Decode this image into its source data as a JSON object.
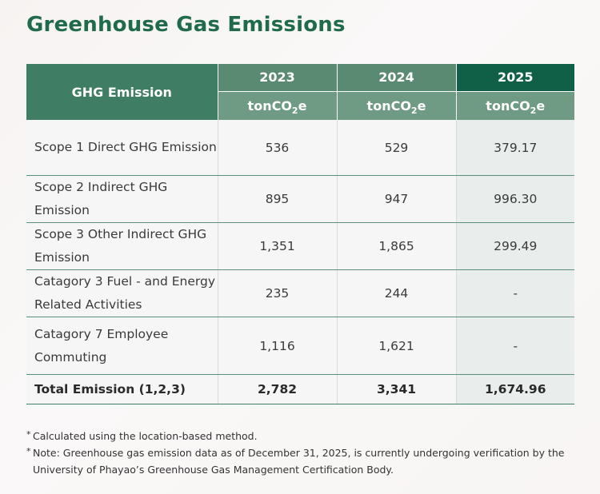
{
  "title": "Greenhouse Gas Emissions",
  "table": {
    "header_label": "GHG Emission",
    "years": [
      "2023",
      "2024",
      "2025"
    ],
    "unit_prefix": "tonCO",
    "unit_sub": "2",
    "unit_suffix": "e",
    "rows": [
      {
        "label": "Scope 1 Direct GHG Emission",
        "values": [
          "536",
          "529",
          "379.17"
        ]
      },
      {
        "label": "Scope 2 Indirect GHG Emission",
        "values": [
          "895",
          "947",
          "996.30"
        ]
      },
      {
        "label": "Scope 3 Other Indirect GHG Emission",
        "values": [
          "1,351",
          "1,865",
          "299.49"
        ]
      },
      {
        "label": "Catagory 3 Fuel - and Energy Related Activities",
        "values": [
          "235",
          "244",
          "-"
        ]
      },
      {
        "label": "Catagory 7 Employee Commuting",
        "values": [
          "1,116",
          "1,621",
          "-"
        ]
      }
    ],
    "total": {
      "label": "Total Emission (1,2,3)",
      "values": [
        "2,782",
        "3,341",
        "1,674.96"
      ]
    }
  },
  "notes": {
    "star": "*",
    "note1": "Calculated using the location-based method.",
    "note2": "Note: Greenhouse gas emission data as of December 31, 2025, is currently undergoing verification by the University of Phayao’s Greenhouse Gas Management Certification Body."
  },
  "colors": {
    "title": "#1f6b4c",
    "header_dark": "#0f6046",
    "header_mid": "#5b8a72",
    "header_light": "#6f9a84",
    "row_border": "#5f8f79"
  }
}
